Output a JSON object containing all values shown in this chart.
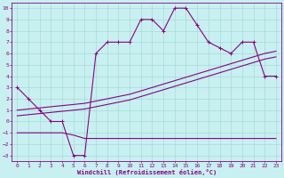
{
  "xlabel": "Windchill (Refroidissement éolien,°C)",
  "bg_color": "#c8f0f0",
  "grid_color": "#a8d8d8",
  "line_color": "#880088",
  "xlim": [
    -0.5,
    23.5
  ],
  "ylim": [
    -3.5,
    10.5
  ],
  "xticks": [
    0,
    1,
    2,
    3,
    4,
    5,
    6,
    7,
    8,
    9,
    10,
    11,
    12,
    13,
    14,
    15,
    16,
    17,
    18,
    19,
    20,
    21,
    22,
    23
  ],
  "yticks": [
    -3,
    -2,
    -1,
    0,
    1,
    2,
    3,
    4,
    5,
    6,
    7,
    8,
    9,
    10
  ],
  "line1_x": [
    0,
    1,
    2,
    3,
    4,
    5,
    6,
    7,
    8,
    9,
    10,
    11,
    12,
    13,
    14,
    15,
    16,
    17,
    18,
    19,
    20,
    21,
    22,
    23
  ],
  "line1_y": [
    3,
    2,
    1,
    0,
    0,
    -3,
    -3,
    6,
    7,
    7,
    7,
    9,
    9,
    8,
    10,
    10,
    8.5,
    7,
    6.5,
    6,
    7,
    7,
    4,
    4
  ],
  "line2_x": [
    0,
    1,
    2,
    3,
    4,
    5,
    6,
    7,
    8,
    9,
    10,
    11,
    12,
    13,
    14,
    15,
    16,
    17,
    18,
    19,
    20,
    21,
    22,
    23
  ],
  "line2_y": [
    1,
    1.1,
    1.2,
    1.3,
    1.4,
    1.5,
    1.6,
    1.8,
    2.0,
    2.2,
    2.4,
    2.7,
    3.0,
    3.3,
    3.6,
    3.9,
    4.2,
    4.5,
    4.8,
    5.1,
    5.4,
    5.7,
    6.0,
    6.2
  ],
  "line3_x": [
    0,
    1,
    2,
    3,
    4,
    5,
    6,
    7,
    8,
    9,
    10,
    11,
    12,
    13,
    14,
    15,
    16,
    17,
    18,
    19,
    20,
    21,
    22,
    23
  ],
  "line3_y": [
    0.5,
    0.6,
    0.7,
    0.8,
    0.9,
    1.0,
    1.1,
    1.3,
    1.5,
    1.7,
    1.9,
    2.2,
    2.5,
    2.8,
    3.1,
    3.4,
    3.7,
    4.0,
    4.3,
    4.6,
    4.9,
    5.2,
    5.5,
    5.7
  ],
  "line4_x": [
    0,
    1,
    2,
    3,
    4,
    5,
    6,
    7,
    8,
    9,
    10,
    11,
    12,
    13,
    14,
    15,
    16,
    17,
    18,
    19,
    20,
    21,
    22,
    23
  ],
  "line4_y": [
    -1,
    -1,
    -1,
    -1,
    -1,
    -1.2,
    -1.5,
    -1.5,
    -1.5,
    -1.5,
    -1.5,
    -1.5,
    -1.5,
    -1.5,
    -1.5,
    -1.5,
    -1.5,
    -1.5,
    -1.5,
    -1.5,
    -1.5,
    -1.5,
    -1.5,
    -1.5
  ]
}
